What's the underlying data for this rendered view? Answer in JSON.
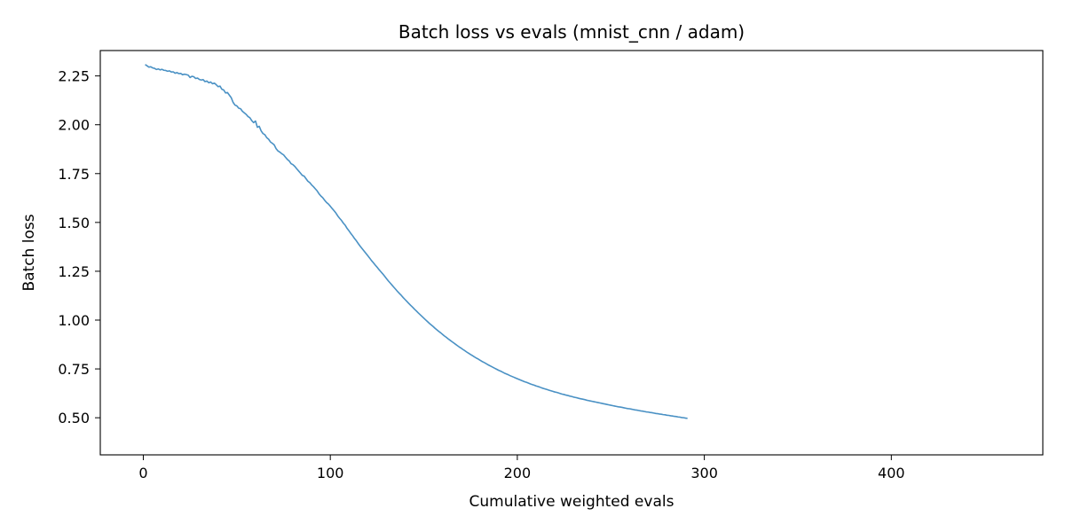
{
  "chart_data": {
    "type": "line",
    "title": "Batch loss vs evals (mnist_cnn / adam)",
    "xlabel": "Cumulative weighted evals",
    "ylabel": "Batch loss",
    "xlim": [
      -23,
      481
    ],
    "ylim": [
      0.31,
      2.38
    ],
    "xticks": [
      0,
      100,
      200,
      300,
      400
    ],
    "yticks": [
      0.5,
      0.75,
      1.0,
      1.25,
      1.5,
      1.75,
      2.0,
      2.25
    ],
    "ytick_labels": [
      "0.50",
      "0.75",
      "1.00",
      "1.25",
      "1.50",
      "1.75",
      "2.00",
      "2.25"
    ],
    "grid": false,
    "series": [
      {
        "color": "#4a91c4",
        "x_start": 1,
        "x_step": 1,
        "values": [
          2.308,
          2.302,
          2.295,
          2.297,
          2.291,
          2.289,
          2.283,
          2.286,
          2.281,
          2.284,
          2.279,
          2.278,
          2.274,
          2.276,
          2.27,
          2.271,
          2.264,
          2.267,
          2.262,
          2.263,
          2.256,
          2.259,
          2.257,
          2.254,
          2.242,
          2.248,
          2.246,
          2.237,
          2.239,
          2.232,
          2.229,
          2.231,
          2.221,
          2.224,
          2.215,
          2.219,
          2.21,
          2.213,
          2.205,
          2.195,
          2.198,
          2.182,
          2.178,
          2.163,
          2.165,
          2.152,
          2.139,
          2.115,
          2.101,
          2.097,
          2.085,
          2.082,
          2.069,
          2.061,
          2.053,
          2.042,
          2.036,
          2.021,
          2.011,
          2.019,
          1.987,
          1.992,
          1.969,
          1.955,
          1.949,
          1.934,
          1.926,
          1.912,
          1.905,
          1.897,
          1.878,
          1.866,
          1.86,
          1.852,
          1.846,
          1.834,
          1.823,
          1.815,
          1.801,
          1.796,
          1.787,
          1.775,
          1.764,
          1.753,
          1.741,
          1.737,
          1.724,
          1.711,
          1.704,
          1.692,
          1.683,
          1.672,
          1.661,
          1.646,
          1.635,
          1.626,
          1.613,
          1.602,
          1.594,
          1.583,
          1.571,
          1.56,
          1.548,
          1.533,
          1.521,
          1.51,
          1.496,
          1.485,
          1.469,
          1.457,
          1.443,
          1.431,
          1.417,
          1.405,
          1.391,
          1.378,
          1.366,
          1.354,
          1.342,
          1.33,
          1.318,
          1.305,
          1.294,
          1.282,
          1.271,
          1.259,
          1.248,
          1.237,
          1.225,
          1.213,
          1.201,
          1.19,
          1.179,
          1.168,
          1.157,
          1.146,
          1.136,
          1.126,
          1.115,
          1.105,
          1.095,
          1.085,
          1.075,
          1.066,
          1.056,
          1.047,
          1.037,
          1.028,
          1.019,
          1.01,
          1.001,
          0.992,
          0.983,
          0.975,
          0.967,
          0.958,
          0.95,
          0.942,
          0.935,
          0.927,
          0.919,
          0.912,
          0.904,
          0.897,
          0.89,
          0.883,
          0.876,
          0.869,
          0.862,
          0.856,
          0.849,
          0.843,
          0.836,
          0.83,
          0.824,
          0.818,
          0.812,
          0.806,
          0.801,
          0.795,
          0.789,
          0.784,
          0.779,
          0.773,
          0.768,
          0.763,
          0.758,
          0.753,
          0.748,
          0.743,
          0.739,
          0.734,
          0.729,
          0.725,
          0.721,
          0.716,
          0.712,
          0.708,
          0.704,
          0.7,
          0.696,
          0.692,
          0.688,
          0.684,
          0.681,
          0.677,
          0.673,
          0.67,
          0.667,
          0.663,
          0.66,
          0.657,
          0.653,
          0.65,
          0.647,
          0.644,
          0.641,
          0.638,
          0.635,
          0.632,
          0.63,
          0.627,
          0.624,
          0.621,
          0.619,
          0.616,
          0.614,
          0.611,
          0.609,
          0.606,
          0.604,
          0.602,
          0.599,
          0.597,
          0.595,
          0.593,
          0.59,
          0.588,
          0.586,
          0.584,
          0.582,
          0.58,
          0.578,
          0.576,
          0.574,
          0.572,
          0.57,
          0.568,
          0.566,
          0.564,
          0.562,
          0.56,
          0.558,
          0.556,
          0.555,
          0.553,
          0.551,
          0.549,
          0.547,
          0.546,
          0.544,
          0.542,
          0.54,
          0.539,
          0.537,
          0.535,
          0.534,
          0.532,
          0.53,
          0.529,
          0.527,
          0.526,
          0.524,
          0.522,
          0.521,
          0.519,
          0.518,
          0.516,
          0.515,
          0.513,
          0.512,
          0.51,
          0.509,
          0.507,
          0.506,
          0.504,
          0.503,
          0.501,
          0.5,
          0.498,
          0.497
        ]
      }
    ]
  }
}
